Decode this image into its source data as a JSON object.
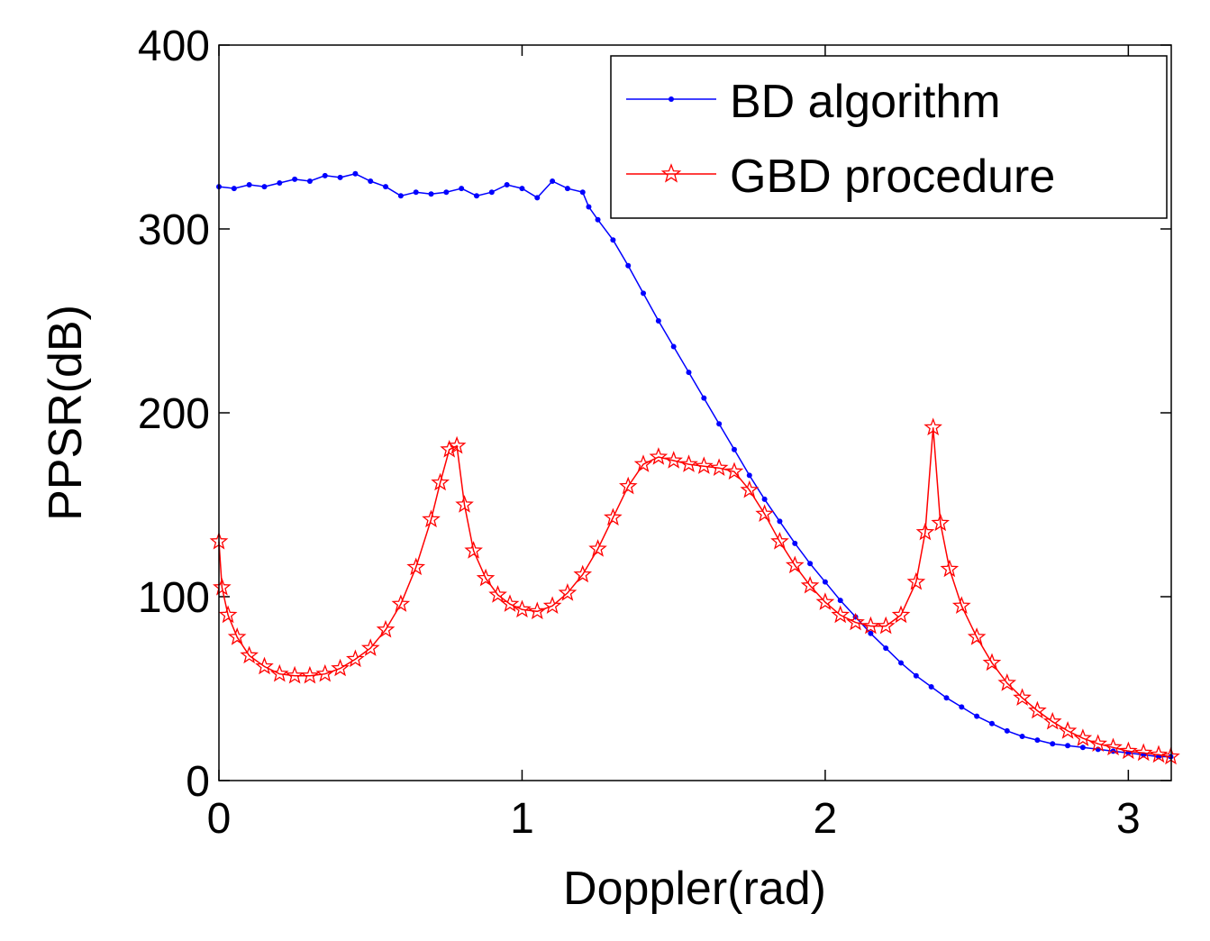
{
  "chart_data": {
    "type": "line",
    "title": "",
    "xlabel": "Doppler(rad)",
    "ylabel": "PPSR(dB)",
    "xlim": [
      0,
      3.1416
    ],
    "ylim": [
      0,
      400
    ],
    "xticks": [
      0,
      1,
      2,
      3
    ],
    "yticks": [
      0,
      100,
      200,
      300,
      400
    ],
    "xtick_labels": [
      "0",
      "1",
      "2",
      "3"
    ],
    "ytick_labels": [
      "0",
      "100",
      "200",
      "300",
      "400"
    ],
    "legend_position": "top-right",
    "series": [
      {
        "name": "BD algorithm",
        "color": "#0000ff",
        "marker": "dot",
        "x": [
          0.0,
          0.05,
          0.1,
          0.15,
          0.2,
          0.25,
          0.3,
          0.35,
          0.4,
          0.45,
          0.5,
          0.55,
          0.6,
          0.65,
          0.7,
          0.75,
          0.8,
          0.85,
          0.9,
          0.95,
          1.0,
          1.05,
          1.1,
          1.15,
          1.2,
          1.22,
          1.25,
          1.3,
          1.35,
          1.4,
          1.45,
          1.5,
          1.55,
          1.6,
          1.65,
          1.7,
          1.75,
          1.8,
          1.85,
          1.9,
          1.95,
          2.0,
          2.05,
          2.1,
          2.15,
          2.2,
          2.25,
          2.3,
          2.35,
          2.4,
          2.45,
          2.5,
          2.55,
          2.6,
          2.65,
          2.7,
          2.75,
          2.8,
          2.85,
          2.9,
          2.95,
          3.0,
          3.05,
          3.1,
          3.14
        ],
        "y": [
          323,
          322,
          324,
          323,
          325,
          327,
          326,
          329,
          328,
          330,
          326,
          323,
          318,
          320,
          319,
          320,
          322,
          318,
          320,
          324,
          322,
          317,
          326,
          322,
          320,
          312,
          305,
          294,
          280,
          265,
          250,
          236,
          222,
          208,
          194,
          180,
          166,
          153,
          141,
          129,
          118,
          108,
          98,
          89,
          80,
          72,
          64,
          57,
          51,
          45,
          40,
          35,
          31,
          27,
          24,
          22,
          20,
          19,
          18,
          17,
          16,
          15,
          14,
          13,
          13
        ]
      },
      {
        "name": "GBD procedure",
        "color": "#ff0000",
        "marker": "star",
        "x": [
          0.0,
          0.01,
          0.03,
          0.06,
          0.1,
          0.15,
          0.2,
          0.25,
          0.3,
          0.35,
          0.4,
          0.45,
          0.5,
          0.55,
          0.6,
          0.65,
          0.7,
          0.73,
          0.76,
          0.785,
          0.81,
          0.84,
          0.88,
          0.92,
          0.96,
          1.0,
          1.05,
          1.1,
          1.15,
          1.2,
          1.25,
          1.3,
          1.35,
          1.4,
          1.45,
          1.5,
          1.55,
          1.6,
          1.65,
          1.7,
          1.75,
          1.8,
          1.85,
          1.9,
          1.95,
          2.0,
          2.05,
          2.1,
          2.15,
          2.2,
          2.25,
          2.3,
          2.33,
          2.356,
          2.38,
          2.41,
          2.45,
          2.5,
          2.55,
          2.6,
          2.65,
          2.7,
          2.75,
          2.8,
          2.85,
          2.9,
          2.95,
          3.0,
          3.05,
          3.1,
          3.14
        ],
        "y": [
          130,
          105,
          90,
          78,
          68,
          62,
          58,
          57,
          57,
          58,
          61,
          66,
          72,
          82,
          96,
          116,
          142,
          162,
          180,
          182,
          150,
          125,
          110,
          101,
          96,
          93,
          92,
          95,
          102,
          112,
          126,
          143,
          160,
          172,
          176,
          174,
          172,
          171,
          170,
          168,
          158,
          145,
          130,
          117,
          106,
          97,
          90,
          86,
          84,
          84,
          90,
          108,
          135,
          192,
          140,
          115,
          95,
          78,
          64,
          53,
          45,
          38,
          32,
          27,
          23,
          20,
          18,
          16,
          15,
          14,
          13
        ]
      }
    ]
  }
}
